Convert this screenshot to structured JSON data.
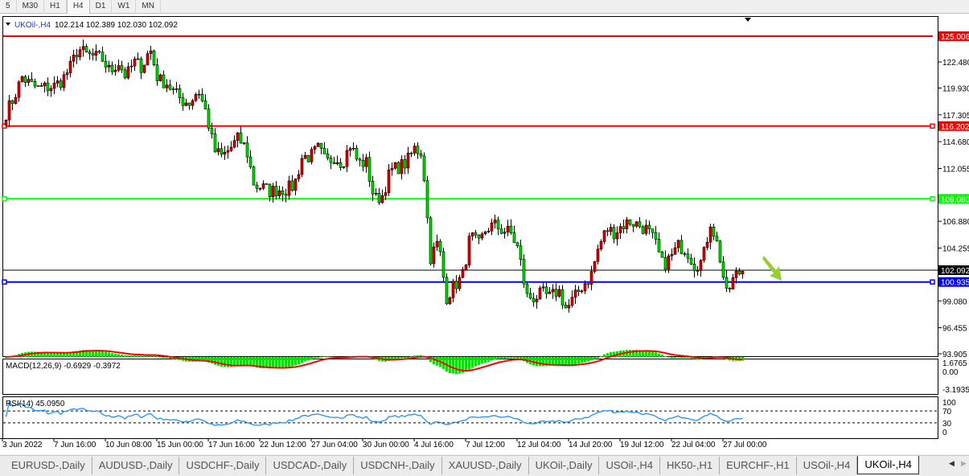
{
  "toolbar": {
    "timeframes": [
      "5",
      "M30",
      "H1",
      "H4",
      "D1",
      "W1",
      "MN"
    ],
    "active": "H4"
  },
  "chart": {
    "symbol_label": "UKOil-,H4",
    "ohlc": "102.214 102.389 102.030 102.092",
    "colors": {
      "bull": "#e00000",
      "bear": "#00e000",
      "wick": "#000000"
    },
    "price_axis": [
      "122.480",
      "119.930",
      "117.305",
      "114.680",
      "112.055",
      "106.880",
      "104.255",
      "99.080",
      "96.455",
      "93.905"
    ],
    "levels": [
      {
        "price": "125.006",
        "color": "#ff0000"
      },
      {
        "price": "116.202",
        "color": "#ff0000"
      },
      {
        "price": "109.080",
        "color": "#00ff00"
      },
      {
        "price": "100.935",
        "color": "#0000ff"
      }
    ],
    "current_price": {
      "price": "102.092",
      "color": "#000000"
    },
    "price_path": [
      117.5,
      119,
      121,
      120.3,
      119.9,
      120,
      120.1,
      120.7,
      121.9,
      123.8,
      123.2,
      123,
      122.8,
      121.5,
      122.5,
      121,
      122.5,
      122,
      123.8,
      120.7,
      120.5,
      119.5,
      118.7,
      118.5,
      119.8,
      117.5,
      113.8,
      113.2,
      114,
      115,
      114,
      110.4,
      110.2,
      109.8,
      110,
      110,
      110.4,
      113.2,
      113.2,
      114,
      112.6,
      113.2,
      112.6,
      114.4,
      112.6,
      112.6,
      109,
      109.4,
      111.8,
      112.2,
      112.6,
      114,
      113.6,
      103.3,
      104.9,
      99.4,
      100.6,
      101.4,
      105.5,
      104.5,
      106.2,
      106.5,
      106,
      105.8,
      104.1,
      99.5,
      99.4,
      99.8,
      99.4,
      100.2,
      98.2,
      99.4,
      100.6,
      101.4,
      104.3,
      106.1,
      105.8,
      106.5,
      106.9,
      106.5,
      106.1,
      104.9,
      102.6,
      103.3,
      104.5,
      104.1,
      102.6,
      103,
      106.9,
      104.1,
      99.6,
      101.5,
      102.1
    ],
    "arrow_color": "#9acd32"
  },
  "macd": {
    "label": "MACD(12,26,9) -0.6929 -0.3972",
    "axis": [
      "1.6765",
      "0.00",
      "-3.1935"
    ],
    "hist_color": "#00e000",
    "signal_color": "#ff0000"
  },
  "rsi": {
    "label": "RSI(14) 45.0950",
    "axis": [
      "100",
      "70",
      "30",
      "0"
    ],
    "color": "#1e90ff"
  },
  "time_axis": [
    "3 Jun 2022",
    "7 Jun 16:00",
    "10 Jun 08:00",
    "15 Jun 00:00",
    "17 Jun 16:00",
    "22 Jun 12:00",
    "27 Jun 04:00",
    "30 Jun 00:00",
    "4 Jul 16:00",
    "7 Jul 12:00",
    "12 Jul 04:00",
    "14 Jul 20:00",
    "19 Jul 12:00",
    "22 Jul 04:00",
    "27 Jul 00:00"
  ],
  "tabs": [
    "EURUSD-,Daily",
    "AUDUSD-,Daily",
    "USDCHF-,Daily",
    "USDCAD-,Daily",
    "USDCNH-,Daily",
    "XAUUSD-,Daily",
    "UKOil-,Daily",
    "USOil-,H4",
    "HK50-,H1",
    "EURCHF-,H1",
    "USOil-,H4",
    "UKOil-,H4"
  ],
  "active_tab": "UKOil-,H4"
}
